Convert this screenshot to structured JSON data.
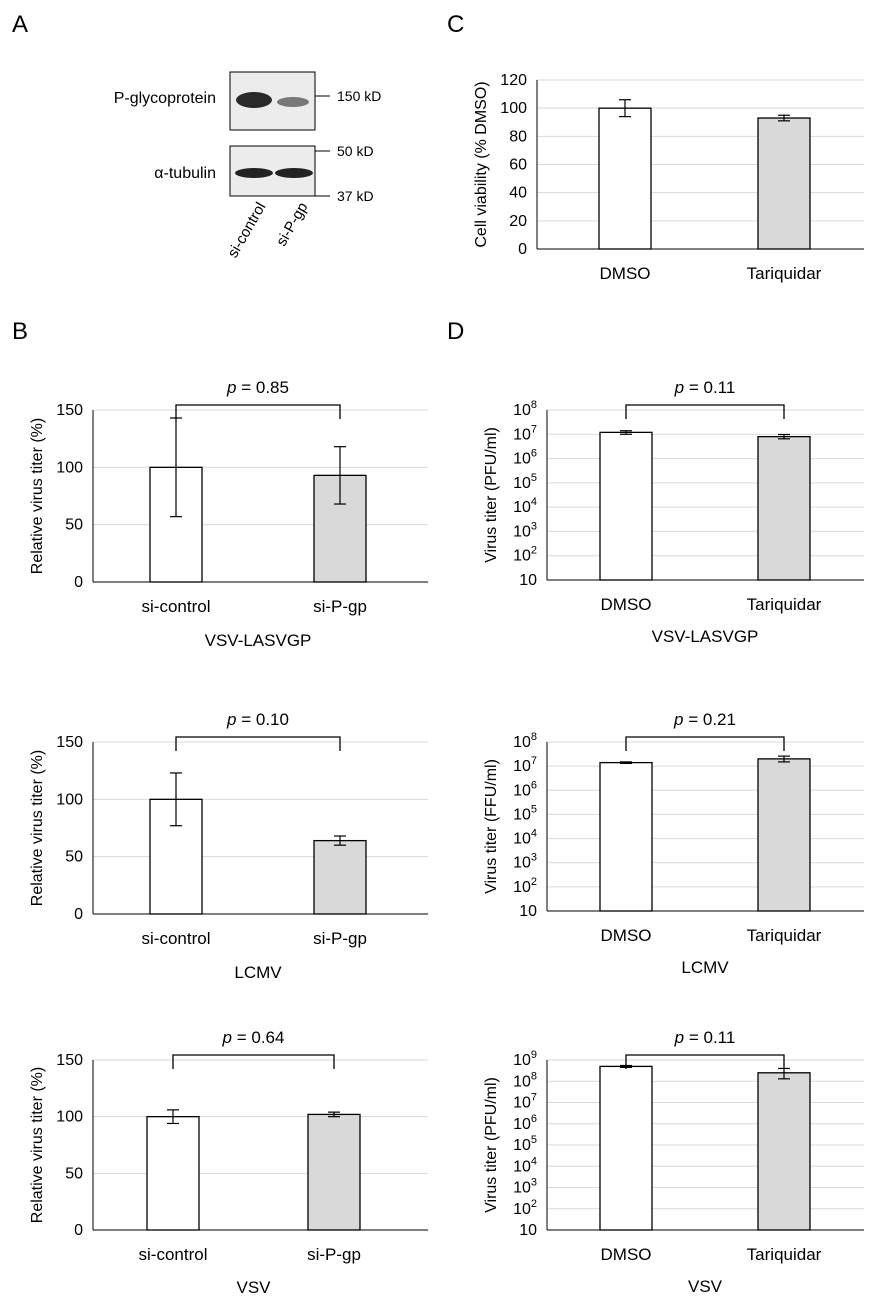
{
  "panel_labels": [
    "A",
    "B",
    "C",
    "D"
  ],
  "colors": {
    "si_control": "#ffffff",
    "si_pgp": "#d9d9d9",
    "grid": "#d9d9d9",
    "axis": "#000000"
  },
  "blot": {
    "rows": [
      {
        "label": "P-glycoprotein",
        "markers": [
          "150 kD"
        ]
      },
      {
        "label": "α-tubulin",
        "markers": [
          "50 kD",
          "37 kD"
        ]
      }
    ],
    "lanes": [
      "si-control",
      "si-P-gp"
    ]
  },
  "chart_data": [
    {
      "id": "B1",
      "type": "bar",
      "panel": "B",
      "categories": [
        "si-control",
        "si-P-gp"
      ],
      "values": [
        100,
        93
      ],
      "errors": [
        43,
        25
      ],
      "ylabel": "Relative virus titer (%)",
      "xlabel": "VSV-LASVGP",
      "ylim": [
        0,
        150
      ],
      "yticks": [
        0,
        50,
        100,
        150
      ],
      "pvalue_prefix": "p",
      "pvalue_text": " = 0.85"
    },
    {
      "id": "B2",
      "type": "bar",
      "panel": "B",
      "categories": [
        "si-control",
        "si-P-gp"
      ],
      "values": [
        100,
        64
      ],
      "errors": [
        23,
        4
      ],
      "ylabel": "Relative virus titer (%)",
      "xlabel": "LCMV",
      "ylim": [
        0,
        150
      ],
      "yticks": [
        0,
        50,
        100,
        150
      ],
      "pvalue_prefix": "p",
      "pvalue_text": " = 0.10"
    },
    {
      "id": "B3",
      "type": "bar",
      "panel": "B",
      "categories": [
        "si-control",
        "si-P-gp"
      ],
      "values": [
        100,
        102
      ],
      "errors": [
        6,
        2
      ],
      "ylabel": "Relative virus titer (%)",
      "xlabel": "VSV",
      "ylim": [
        0,
        150
      ],
      "yticks": [
        0,
        50,
        100,
        150
      ],
      "pvalue_prefix": "p",
      "pvalue_text": " = 0.64"
    },
    {
      "id": "C",
      "type": "bar",
      "panel": "C",
      "categories": [
        "DMSO",
        "Tariquidar"
      ],
      "values": [
        100,
        93
      ],
      "errors": [
        6,
        2
      ],
      "ylabel": "Cell viability (% DMSO)",
      "xlabel": "",
      "ylim": [
        0,
        120
      ],
      "yticks": [
        0,
        20,
        40,
        60,
        80,
        100,
        120
      ]
    },
    {
      "id": "D1",
      "type": "bar",
      "panel": "D",
      "scale": "log",
      "categories": [
        "DMSO",
        "Tariquidar"
      ],
      "values": [
        12000000,
        8000000
      ],
      "error_low": [
        10000000,
        6500000
      ],
      "error_high": [
        14000000,
        9800000
      ],
      "ylabel": "Virus titer (PFU/ml)",
      "xlabel": "VSV-LASVGP",
      "ylim": [
        10,
        100000000
      ],
      "ytick_labels": [
        {
          "base": "10",
          "exp": ""
        },
        {
          "base": "10",
          "exp": "2"
        },
        {
          "base": "10",
          "exp": "3"
        },
        {
          "base": "10",
          "exp": "4"
        },
        {
          "base": "10",
          "exp": "5"
        },
        {
          "base": "10",
          "exp": "6"
        },
        {
          "base": "10",
          "exp": "7"
        },
        {
          "base": "10",
          "exp": "8"
        }
      ],
      "pvalue_prefix": "p",
      "pvalue_text": " = 0.11"
    },
    {
      "id": "D2",
      "type": "bar",
      "panel": "D",
      "scale": "log",
      "categories": [
        "DMSO",
        "Tariquidar"
      ],
      "values": [
        14000000,
        20000000
      ],
      "error_low": [
        13000000,
        15000000
      ],
      "error_high": [
        15000000,
        26000000
      ],
      "ylabel": "Virus titer (FFU/ml)",
      "xlabel": "LCMV",
      "ylim": [
        10,
        100000000
      ],
      "ytick_labels": [
        {
          "base": "10",
          "exp": ""
        },
        {
          "base": "10",
          "exp": "2"
        },
        {
          "base": "10",
          "exp": "3"
        },
        {
          "base": "10",
          "exp": "4"
        },
        {
          "base": "10",
          "exp": "5"
        },
        {
          "base": "10",
          "exp": "6"
        },
        {
          "base": "10",
          "exp": "7"
        },
        {
          "base": "10",
          "exp": "8"
        }
      ],
      "pvalue_prefix": "p",
      "pvalue_text": " = 0.21"
    },
    {
      "id": "D3",
      "type": "bar",
      "panel": "D",
      "scale": "log",
      "categories": [
        "DMSO",
        "Tariquidar"
      ],
      "values": [
        500000000,
        250000000
      ],
      "error_low": [
        450000000,
        130000000
      ],
      "error_high": [
        550000000,
        400000000
      ],
      "ylabel": "Virus titer (PFU/ml)",
      "xlabel": "VSV",
      "ylim": [
        10,
        1000000000
      ],
      "ytick_labels": [
        {
          "base": "10",
          "exp": ""
        },
        {
          "base": "10",
          "exp": "2"
        },
        {
          "base": "10",
          "exp": "3"
        },
        {
          "base": "10",
          "exp": "4"
        },
        {
          "base": "10",
          "exp": "5"
        },
        {
          "base": "10",
          "exp": "6"
        },
        {
          "base": "10",
          "exp": "7"
        },
        {
          "base": "10",
          "exp": "8"
        },
        {
          "base": "10",
          "exp": "9"
        }
      ],
      "pvalue_prefix": "p",
      "pvalue_text": " = 0.11"
    }
  ]
}
